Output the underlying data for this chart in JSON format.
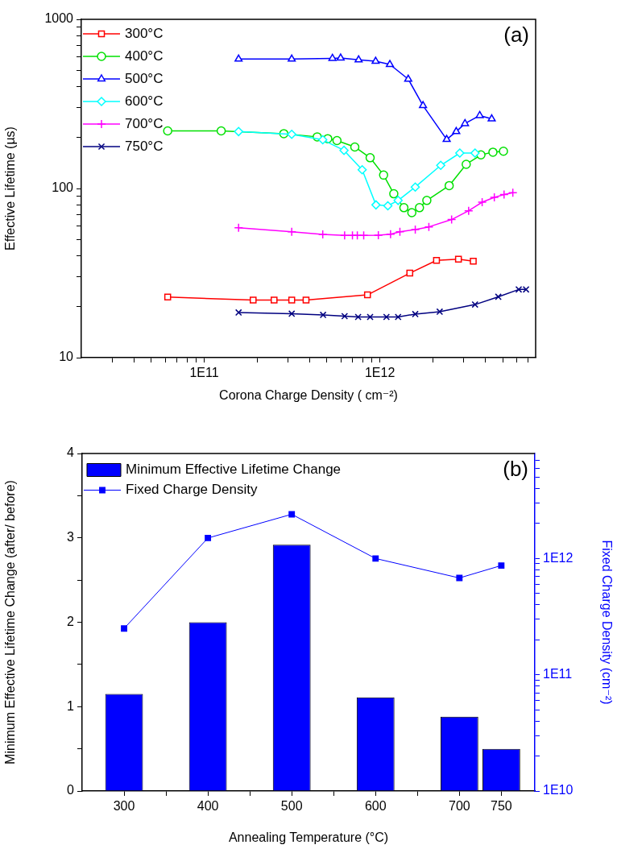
{
  "chart_data": [
    {
      "type": "line",
      "xlabel": "Corona Charge Density ( cm⁻²)",
      "ylabel": "Effective Lifetime (µs)",
      "annotations": [
        "(a)"
      ],
      "log": "xy",
      "legend": "top left",
      "xlim": [
        20000000000.0,
        7700000000000.0
      ],
      "ylim": [
        10,
        1000
      ],
      "xticks": [
        {
          "value": 30000000000.0,
          "label": null
        },
        {
          "value": 40000000000.0,
          "label": null
        },
        {
          "value": 50000000000.0,
          "label": null
        },
        {
          "value": 60000000000.0,
          "label": null
        },
        {
          "value": 70000000000.0,
          "label": null
        },
        {
          "value": 80000000000.0,
          "label": null
        },
        {
          "value": 90000000000.0,
          "label": null
        },
        {
          "value": 100000000000.0,
          "label": "1E11"
        },
        {
          "value": 200000000000.0,
          "label": null
        },
        {
          "value": 300000000000.0,
          "label": null
        },
        {
          "value": 400000000000.0,
          "label": null
        },
        {
          "value": 500000000000.0,
          "label": null
        },
        {
          "value": 600000000000.0,
          "label": null
        },
        {
          "value": 700000000000.0,
          "label": null
        },
        {
          "value": 800000000000.0,
          "label": null
        },
        {
          "value": 900000000000.0,
          "label": null
        },
        {
          "value": 1000000000000.0,
          "label": "1E12"
        },
        {
          "value": 2000000000000.0,
          "label": null
        },
        {
          "value": 3000000000000.0,
          "label": null
        },
        {
          "value": 4000000000000.0,
          "label": null
        },
        {
          "value": 5000000000000.0,
          "label": null
        },
        {
          "value": 6000000000000.0,
          "label": null
        },
        {
          "value": 7000000000000.0,
          "label": null
        }
      ],
      "yticks": [
        10,
        {
          "value": 20,
          "label": null
        },
        {
          "value": 30,
          "label": null
        },
        {
          "value": 40,
          "label": null
        },
        {
          "value": 50,
          "label": null
        },
        {
          "value": 60,
          "label": null
        },
        {
          "value": 70,
          "label": null
        },
        {
          "value": 80,
          "label": null
        },
        {
          "value": 90,
          "label": null
        },
        100,
        {
          "value": 200,
          "label": null
        },
        {
          "value": 300,
          "label": null
        },
        {
          "value": 400,
          "label": null
        },
        {
          "value": 500,
          "label": null
        },
        {
          "value": 600,
          "label": null
        },
        {
          "value": 700,
          "label": null
        },
        {
          "value": 800,
          "label": null
        },
        {
          "value": 900,
          "label": null
        },
        1000
      ],
      "series": [
        {
          "name": "300°C",
          "color": "#ff0000",
          "marker": "square",
          "x": [
            62000000000.0,
            190000000000.0,
            250000000000.0,
            315000000000.0,
            380000000000.0,
            850000000000.0,
            1480000000000.0,
            2100000000000.0,
            2800000000000.0,
            3400000000000.0
          ],
          "values": [
            22.8,
            21.9,
            21.9,
            21.9,
            21.9,
            23.5,
            31.6,
            37.6,
            38.2,
            37.2
          ]
        },
        {
          "name": "400°C",
          "color": "#00e000",
          "marker": "circle",
          "x": [
            62000000000.0,
            125000000000.0,
            284000000000.0,
            440000000000.0,
            505000000000.0,
            570000000000.0,
            720000000000.0,
            880000000000.0,
            1050000000000.0,
            1200000000000.0,
            1370000000000.0,
            1520000000000.0,
            1680000000000.0,
            1850000000000.0,
            2480000000000.0,
            3100000000000.0,
            3760000000000.0,
            4400000000000.0,
            5050000000000.0
          ],
          "values": [
            219,
            219,
            211,
            202,
            197,
            192,
            176,
            152,
            120,
            93,
            77,
            72,
            77,
            85,
            104,
            139,
            158,
            164,
            166
          ]
        },
        {
          "name": "500°C",
          "color": "#0000ff",
          "marker": "triangle",
          "x": [
            157000000000.0,
            315000000000.0,
            537000000000.0,
            598000000000.0,
            757000000000.0,
            946000000000.0,
            1140000000000.0,
            1450000000000.0,
            1760000000000.0,
            2400000000000.0,
            2720000000000.0,
            3050000000000.0,
            3700000000000.0,
            4330000000000.0
          ],
          "values": [
            582,
            582,
            588,
            590,
            576,
            565,
            541,
            443,
            309,
            195,
            217,
            242,
            270,
            258
          ]
        },
        {
          "name": "600°C",
          "color": "#00ffff",
          "marker": "diamond",
          "x": [
            157000000000.0,
            315000000000.0,
            473000000000.0,
            625000000000.0,
            793000000000.0,
            950000000000.0,
            1110000000000.0,
            1270000000000.0,
            1590000000000.0,
            2220000000000.0,
            2850000000000.0,
            3480000000000.0
          ],
          "values": [
            217,
            209,
            194,
            168,
            129,
            80,
            79,
            85,
            102,
            137,
            162,
            162
          ]
        },
        {
          "name": "700°C",
          "color": "#ff00ff",
          "marker": "cross",
          "x": [
            157000000000.0,
            315000000000.0,
            473000000000.0,
            630000000000.0,
            698000000000.0,
            744000000000.0,
            809000000000.0,
            980000000000.0,
            1150000000000.0,
            1300000000000.0,
            1590000000000.0,
            1900000000000.0,
            2560000000000.0,
            3200000000000.0,
            3820000000000.0,
            4480000000000.0,
            5090000000000.0,
            5710000000000.0
          ],
          "values": [
            58.6,
            55.5,
            53.5,
            52.8,
            52.8,
            52.8,
            52.8,
            53,
            53.7,
            55.5,
            57.2,
            59.3,
            65.5,
            73.8,
            83,
            88.7,
            92,
            94.4
          ]
        },
        {
          "name": "750°C",
          "color": "#000080",
          "marker": "x",
          "x": [
            157000000000.0,
            315000000000.0,
            475000000000.0,
            630000000000.0,
            752000000000.0,
            880000000000.0,
            1090000000000.0,
            1270000000000.0,
            1590000000000.0,
            2190000000000.0,
            3480000000000.0,
            4720000000000.0,
            6170000000000.0,
            6790000000000.0
          ],
          "values": [
            18.5,
            18.2,
            17.9,
            17.6,
            17.4,
            17.4,
            17.4,
            17.4,
            18.1,
            18.7,
            20.6,
            22.9,
            25.3,
            25.3
          ]
        }
      ]
    },
    {
      "type": "bar",
      "xlabel": "Annealing Temperature (°C)",
      "ylabel": "Minimum Effective Lifetime Change (after/ before)",
      "y2label": "Fixed Charge Density (cm⁻²)",
      "annotations": [
        "(b)"
      ],
      "log": "y2",
      "legend": "top left",
      "x": [
        300,
        400,
        500,
        600,
        700,
        750
      ],
      "xlim": [
        250,
        790
      ],
      "xticks": [
        300,
        {
          "value": 350,
          "label": null
        },
        400,
        {
          "value": 450,
          "label": null
        },
        500,
        {
          "value": 550,
          "label": null
        },
        600,
        {
          "value": 650,
          "label": null
        },
        700,
        750
      ],
      "ylim": [
        0,
        4
      ],
      "yticks": [
        0,
        {
          "value": 0.5,
          "label": null
        },
        1,
        {
          "value": 1.5,
          "label": null
        },
        2,
        {
          "value": 2.5,
          "label": null
        },
        3,
        {
          "value": 3.5,
          "label": null
        },
        4
      ],
      "y2lim": [
        10000000000.0,
        8000000000000.0
      ],
      "y2ticks": [
        {
          "value": 10000000000.0,
          "label": "1E10"
        },
        {
          "value": 20000000000.0,
          "label": null
        },
        {
          "value": 30000000000.0,
          "label": null
        },
        {
          "value": 40000000000.0,
          "label": null
        },
        {
          "value": 50000000000.0,
          "label": null
        },
        {
          "value": 60000000000.0,
          "label": null
        },
        {
          "value": 70000000000.0,
          "label": null
        },
        {
          "value": 80000000000.0,
          "label": null
        },
        {
          "value": 90000000000.0,
          "label": null
        },
        {
          "value": 100000000000.0,
          "label": "1E11"
        },
        {
          "value": 200000000000.0,
          "label": null
        },
        {
          "value": 300000000000.0,
          "label": null
        },
        {
          "value": 400000000000.0,
          "label": null
        },
        {
          "value": 500000000000.0,
          "label": null
        },
        {
          "value": 600000000000.0,
          "label": null
        },
        {
          "value": 700000000000.0,
          "label": null
        },
        {
          "value": 800000000000.0,
          "label": null
        },
        {
          "value": 900000000000.0,
          "label": null
        },
        {
          "value": 1000000000000.0,
          "label": "1E12"
        },
        {
          "value": 2000000000000.0,
          "label": null
        },
        {
          "value": 3000000000000.0,
          "label": null
        },
        {
          "value": 4000000000000.0,
          "label": null
        },
        {
          "value": 5000000000000.0,
          "label": null
        },
        {
          "value": 6000000000000.0,
          "label": null
        },
        {
          "value": 7000000000000.0,
          "label": null
        }
      ],
      "series": [
        {
          "name": "Minimum Effective Lifetime Change",
          "color": "#0000ff",
          "values": [
            1.15,
            2.0,
            2.92,
            1.11,
            0.88,
            0.5
          ]
        },
        {
          "type": "line",
          "axis": "y2",
          "marker": "square",
          "name": "Fixed Charge Density",
          "color": "#0000ff",
          "values": [
            250000000000.0,
            1500000000000.0,
            2400000000000.0,
            1000000000000.0,
            680000000000.0,
            870000000000.0
          ]
        }
      ]
    }
  ]
}
